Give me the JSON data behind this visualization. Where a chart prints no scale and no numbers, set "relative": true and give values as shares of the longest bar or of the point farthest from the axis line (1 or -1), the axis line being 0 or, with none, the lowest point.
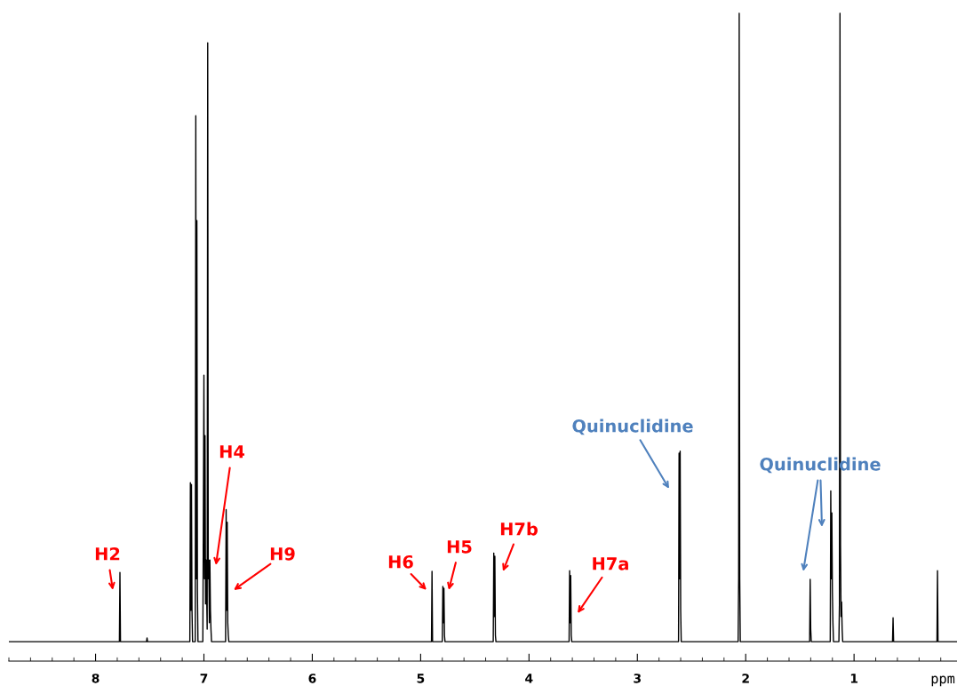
{
  "chart_data": {
    "type": "line",
    "relative": true,
    "xlabel": "ppm",
    "xlim": [
      8.8,
      0.05
    ],
    "xticks": [
      8,
      7,
      6,
      5,
      4,
      3,
      2,
      1
    ],
    "grid": false,
    "marker": "none",
    "line_style": "solid",
    "series": [
      {
        "color": "#000000",
        "x": [
          8.8,
          7.78,
          7.775,
          7.77,
          7.765,
          7.53,
          7.525,
          7.52,
          7.13,
          7.125,
          7.12,
          7.115,
          7.11,
          7.105,
          7.08,
          7.075,
          7.07,
          7.065,
          7.06,
          7.055,
          7.01,
          7.0,
          6.995,
          6.99,
          6.985,
          6.98,
          6.97,
          6.965,
          6.96,
          6.955,
          6.95,
          6.945,
          6.94,
          6.935,
          6.93,
          6.8,
          6.795,
          6.79,
          6.785,
          6.78,
          6.775,
          6.77,
          6.6,
          4.9,
          4.895,
          4.89,
          4.8,
          4.795,
          4.79,
          4.785,
          4.78,
          4.775,
          4.33,
          4.325,
          4.32,
          4.315,
          4.31,
          4.305,
          4.3,
          3.63,
          3.625,
          3.62,
          3.615,
          3.61,
          3.605,
          3.6,
          2.62,
          2.615,
          2.61,
          2.605,
          2.6,
          2.595,
          2.59,
          2.07,
          2.065,
          2.06,
          2.055,
          2.05,
          1.41,
          1.405,
          1.4,
          1.395,
          1.22,
          1.215,
          1.21,
          1.205,
          1.2,
          1.195,
          1.19,
          1.14,
          1.135,
          1.13,
          1.125,
          1.12,
          1.115,
          1.11,
          1.105,
          1.1,
          1.05,
          0.645,
          0.64,
          0.635,
          0.235,
          0.23,
          0.225,
          0.05
        ],
        "values": [
          0,
          0,
          0.11,
          0,
          0,
          0,
          0.006,
          0,
          0,
          0.253,
          0.05,
          0.25,
          0.05,
          0,
          0,
          0.837,
          0.1,
          0.67,
          0.08,
          0,
          0,
          0.424,
          0.1,
          0.328,
          0.06,
          0.13,
          0.02,
          0.953,
          0.1,
          0.13,
          0.03,
          0.13,
          0.05,
          0.02,
          0,
          0,
          0.21,
          0.05,
          0.19,
          0.03,
          0.01,
          0,
          0,
          0,
          0.112,
          0,
          0,
          0.088,
          0.03,
          0.085,
          0.01,
          0,
          0,
          0.141,
          0.04,
          0.136,
          0.01,
          0,
          0,
          0,
          0.113,
          0.03,
          0.105,
          0.01,
          0,
          0,
          0,
          0.3,
          0.1,
          0.303,
          0.05,
          0,
          0,
          0,
          0.1,
          1,
          0.1,
          0,
          0,
          0.099,
          0.02,
          0,
          0,
          0.24,
          0.1,
          0.205,
          0.08,
          0.03,
          0,
          0,
          0.06,
          1,
          0.154,
          0.04,
          0.063,
          0.02,
          0,
          0,
          0,
          0,
          0.038,
          0,
          0,
          0.113,
          0,
          0
        ]
      }
    ],
    "annotations": [
      "H2",
      "H4",
      "H9",
      "H6",
      "H5",
      "H7b",
      "H7a",
      "Quinuclidine",
      "Quinuclidine"
    ]
  }
}
